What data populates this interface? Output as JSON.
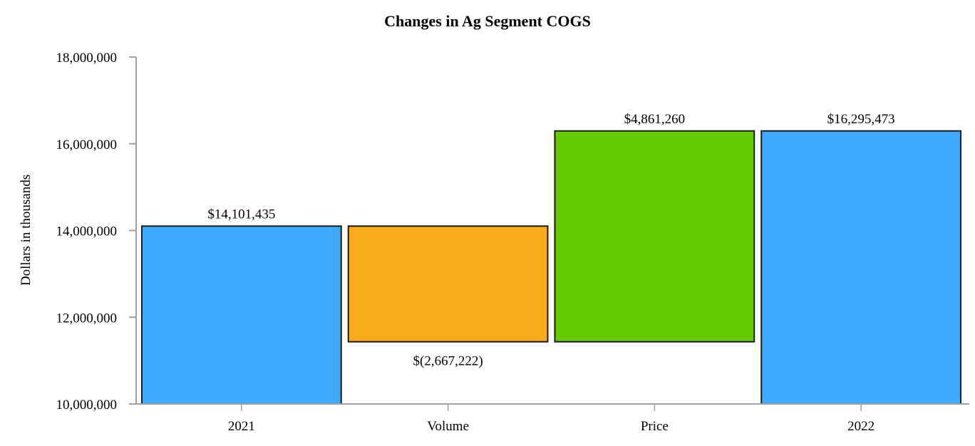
{
  "chart_data": {
    "type": "bar",
    "subtype": "waterfall",
    "title": "Changes in Ag Segment COGS",
    "xlabel": "",
    "ylabel": "Dollars in thousands",
    "ylim": [
      10000000,
      18000000
    ],
    "yticks": [
      10000000,
      12000000,
      14000000,
      16000000,
      18000000
    ],
    "ytick_labels": [
      "10,000,000",
      "12,000,000",
      "14,000,000",
      "16,000,000",
      "18,000,000"
    ],
    "grid": false,
    "legend": null,
    "categories": [
      "2021",
      "Volume",
      "Price",
      "2022"
    ],
    "values": [
      14101435,
      -2667222,
      4861260,
      16295473
    ],
    "bars": [
      {
        "category": "2021",
        "start": 0,
        "end": 14101435,
        "label": "$14,101,435",
        "color": "#3fabfe",
        "label_pos": "above"
      },
      {
        "category": "Volume",
        "start": 14101435,
        "end": 11434213,
        "label": "$(2,667,222)",
        "color": "#f8aa1c",
        "label_pos": "below"
      },
      {
        "category": "Price",
        "start": 11434213,
        "end": 16295473,
        "label": "$4,861,260",
        "color": "#66cc00",
        "label_pos": "above"
      },
      {
        "category": "2022",
        "start": 0,
        "end": 16295473,
        "label": "$16,295,473",
        "color": "#3fabfe",
        "label_pos": "above"
      }
    ]
  }
}
